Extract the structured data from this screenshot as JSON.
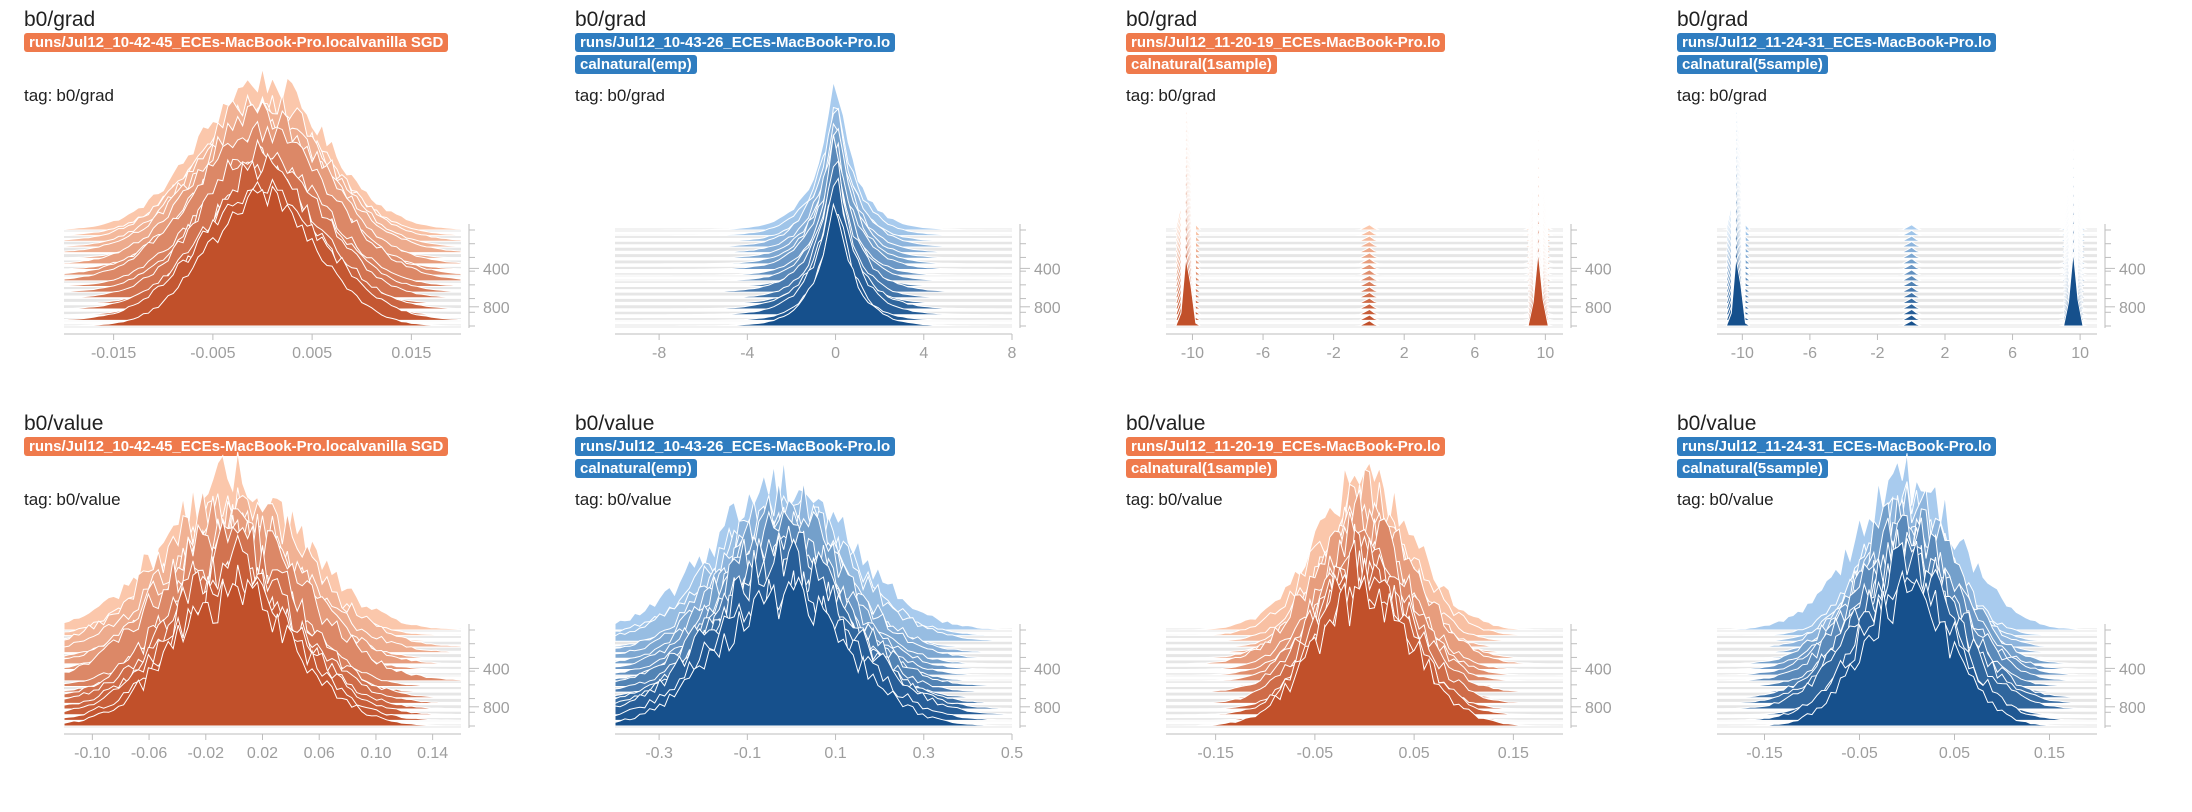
{
  "colors": {
    "orange_dark": "#c1502a",
    "orange_light": "#fbc7ab",
    "orange_badge": "#ef7a4c",
    "blue_dark": "#16508c",
    "blue_light": "#a8cbee",
    "blue_badge": "#2f7dc0",
    "axis": "#bdbdbd",
    "tick_text": "#9e9e9e"
  },
  "charts": [
    {
      "title": "b0/grad",
      "run": "runs/Jul12_10-42-45_ECEs-MacBook-Pro.localvanilla SGD",
      "tag_prefix": "tag:",
      "tag": "b0/grad",
      "palette": "orange"
    },
    {
      "title": "b0/grad",
      "run": "runs/Jul12_10-43-26_ECEs-MacBook-Pro.localnatural(emp)",
      "tag_prefix": "tag:",
      "tag": "b0/grad",
      "palette": "blue"
    },
    {
      "title": "b0/grad",
      "run": "runs/Jul12_11-20-19_ECEs-MacBook-Pro.localnatural(1sample)",
      "tag_prefix": "tag:",
      "tag": "b0/grad",
      "palette": "orange"
    },
    {
      "title": "b0/grad",
      "run": "runs/Jul12_11-24-31_ECEs-MacBook-Pro.localnatural(5sample)",
      "tag_prefix": "tag:",
      "tag": "b0/grad",
      "palette": "blue"
    },
    {
      "title": "b0/value",
      "run": "runs/Jul12_10-42-45_ECEs-MacBook-Pro.localvanilla SGD",
      "tag_prefix": "tag:",
      "tag": "b0/value",
      "palette": "orange"
    },
    {
      "title": "b0/value",
      "run": "runs/Jul12_10-43-26_ECEs-MacBook-Pro.localnatural(emp)",
      "tag_prefix": "tag:",
      "tag": "b0/value",
      "palette": "blue"
    },
    {
      "title": "b0/value",
      "run": "runs/Jul12_11-20-19_ECEs-MacBook-Pro.localnatural(1sample)",
      "tag_prefix": "tag:",
      "tag": "b0/value",
      "palette": "orange"
    },
    {
      "title": "b0/value",
      "run": "runs/Jul12_11-24-31_ECEs-MacBook-Pro.localnatural(5sample)",
      "tag_prefix": "tag:",
      "tag": "b0/value",
      "palette": "blue"
    }
  ],
  "chart_data": [
    {
      "type": "area",
      "title": "b0/grad",
      "xlim": [
        -0.02,
        0.02
      ],
      "x_ticks": [
        "-0.015",
        "-0.005",
        "0.005",
        "0.015"
      ],
      "x_tick_values": [
        -0.015,
        -0.005,
        0.005,
        0.015
      ],
      "y_ticks": [
        "400",
        "800"
      ],
      "y_tick_values": [
        400,
        800
      ],
      "steps": [
        0,
        1000
      ],
      "shape": "gaussian",
      "center": 0.0,
      "spread": 0.006,
      "spikes": []
    },
    {
      "type": "area",
      "title": "b0/grad",
      "xlim": [
        -10,
        8
      ],
      "x_ticks": [
        "-8",
        "-4",
        "0",
        "4",
        "8"
      ],
      "x_tick_values": [
        -8,
        -4,
        0,
        4,
        8
      ],
      "y_ticks": [
        "400",
        "800"
      ],
      "y_tick_values": [
        400,
        800
      ],
      "steps": [
        0,
        1000
      ],
      "shape": "peaked",
      "center": 0.0,
      "spread": 1.2,
      "spikes": []
    },
    {
      "type": "area",
      "title": "b0/grad",
      "xlim": [
        -11.5,
        11
      ],
      "x_ticks": [
        "-10",
        "-6",
        "-2",
        "2",
        "6",
        "10"
      ],
      "x_tick_values": [
        -10,
        -6,
        -2,
        2,
        6,
        10
      ],
      "y_ticks": [
        "400",
        "800"
      ],
      "y_tick_values": [
        400,
        800
      ],
      "steps": [
        0,
        1000
      ],
      "shape": "bimodal_edges",
      "center": 0.0,
      "spread": 0.3,
      "spikes": [
        -10.3,
        9.6
      ]
    },
    {
      "type": "area",
      "title": "b0/grad",
      "xlim": [
        -11.5,
        11
      ],
      "x_ticks": [
        "-10",
        "-6",
        "-2",
        "2",
        "6",
        "10"
      ],
      "x_tick_values": [
        -10,
        -6,
        -2,
        2,
        6,
        10
      ],
      "y_ticks": [
        "400",
        "800"
      ],
      "y_tick_values": [
        400,
        800
      ],
      "steps": [
        0,
        1000
      ],
      "shape": "bimodal_edges",
      "center": 0.0,
      "spread": 0.3,
      "spikes": [
        -10.3,
        9.6
      ]
    },
    {
      "type": "area",
      "title": "b0/value",
      "xlim": [
        -0.12,
        0.16
      ],
      "x_ticks": [
        "-0.10",
        "-0.06",
        "-0.02",
        "0.02",
        "0.06",
        "0.10",
        "0.14"
      ],
      "x_tick_values": [
        -0.1,
        -0.06,
        -0.02,
        0.02,
        0.06,
        0.1,
        0.14
      ],
      "y_ticks": [
        "400",
        "800"
      ],
      "y_tick_values": [
        400,
        800
      ],
      "steps": [
        0,
        1000
      ],
      "shape": "jagged",
      "center": 0.0,
      "spread": 0.045,
      "spikes": []
    },
    {
      "type": "area",
      "title": "b0/value",
      "xlim": [
        -0.4,
        0.5
      ],
      "x_ticks": [
        "-0.3",
        "-0.1",
        "0.1",
        "0.3",
        "0.5"
      ],
      "x_tick_values": [
        -0.3,
        -0.1,
        0.1,
        0.3,
        0.5
      ],
      "y_ticks": [
        "400",
        "800"
      ],
      "y_tick_values": [
        400,
        800
      ],
      "steps": [
        0,
        1000
      ],
      "shape": "jagged",
      "center": -0.02,
      "spread": 0.14,
      "spikes": []
    },
    {
      "type": "area",
      "title": "b0/value",
      "xlim": [
        -0.2,
        0.2
      ],
      "x_ticks": [
        "-0.15",
        "-0.05",
        "0.05",
        "0.15"
      ],
      "x_tick_values": [
        -0.15,
        -0.05,
        0.05,
        0.15
      ],
      "y_ticks": [
        "400",
        "800"
      ],
      "y_tick_values": [
        400,
        800
      ],
      "steps": [
        0,
        1000
      ],
      "shape": "jagged",
      "center": 0.0,
      "spread": 0.045,
      "spikes": []
    },
    {
      "type": "area",
      "title": "b0/value",
      "xlim": [
        -0.2,
        0.2
      ],
      "x_ticks": [
        "-0.15",
        "-0.05",
        "0.05",
        "0.15"
      ],
      "x_tick_values": [
        -0.15,
        -0.05,
        0.05,
        0.15
      ],
      "y_ticks": [
        "400",
        "800"
      ],
      "y_tick_values": [
        400,
        800
      ],
      "steps": [
        0,
        1000
      ],
      "shape": "jagged",
      "center": 0.0,
      "spread": 0.05,
      "spikes": []
    }
  ]
}
